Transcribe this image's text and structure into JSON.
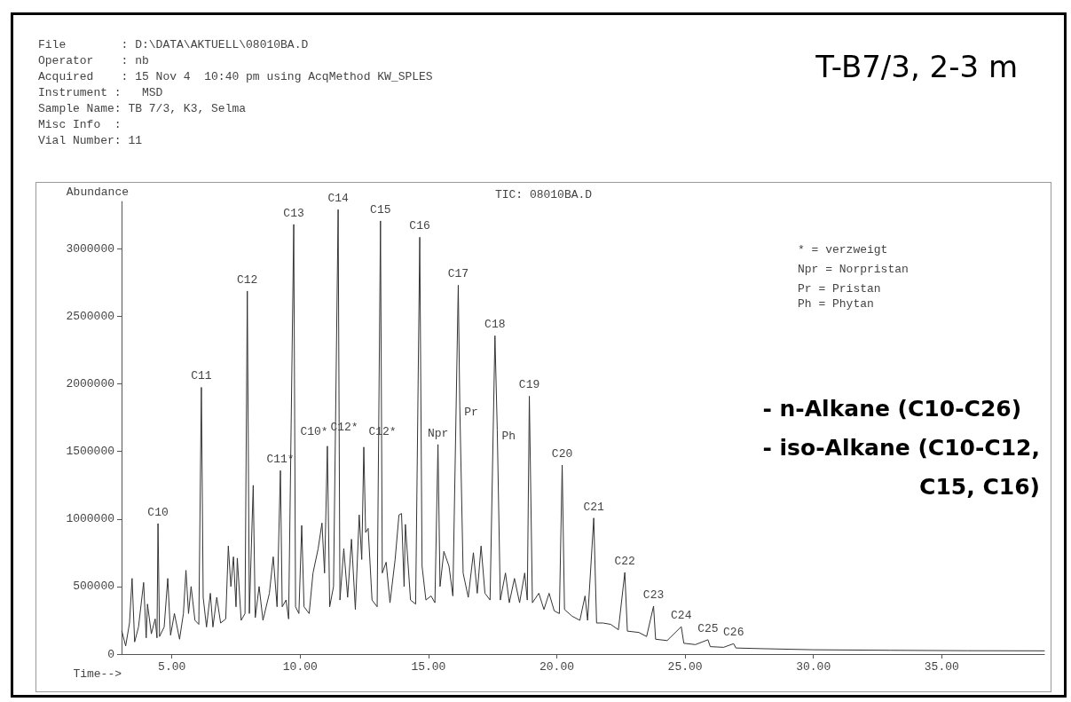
{
  "chart_data": {
    "type": "line",
    "title": "T-B7/3, 2-3 m",
    "subtitle": "TIC: 08010BA.D",
    "xlabel": "Time-->",
    "ylabel": "Abundance",
    "xlim": [
      3.04,
      39
    ],
    "xticks": [
      {
        "value": 5,
        "label": "5.00"
      },
      {
        "value": 10,
        "label": "10.00"
      },
      {
        "value": 15,
        "label": "15.00"
      },
      {
        "value": 20,
        "label": "20.00"
      },
      {
        "value": 25,
        "label": "25.00"
      },
      {
        "value": 30,
        "label": "30.00"
      },
      {
        "value": 35,
        "label": "35.00"
      }
    ],
    "ylim": [
      0,
      3350000
    ],
    "yticks": [
      0,
      500000,
      1000000,
      1500000,
      2000000,
      2500000,
      3000000
    ],
    "grid": false,
    "marker": "none",
    "line_style": "solid",
    "series": [
      {
        "color": "#333333",
        "x": [
          3.05,
          3.2,
          3.35,
          3.45,
          3.55,
          3.7,
          3.9,
          4.0,
          4.05,
          4.2,
          4.35,
          4.42,
          4.46,
          4.52,
          4.7,
          4.84,
          4.95,
          5.1,
          5.3,
          5.45,
          5.55,
          5.65,
          5.75,
          5.9,
          6.05,
          6.15,
          6.22,
          6.35,
          6.5,
          6.6,
          6.75,
          6.9,
          7.1,
          7.2,
          7.3,
          7.4,
          7.5,
          7.55,
          7.7,
          7.85,
          7.94,
          8.02,
          8.17,
          8.25,
          8.4,
          8.55,
          8.8,
          8.95,
          9.1,
          9.17,
          9.23,
          9.3,
          9.45,
          9.55,
          9.75,
          9.82,
          9.95,
          10.06,
          10.15,
          10.35,
          10.5,
          10.7,
          10.85,
          10.95,
          11.06,
          11.15,
          11.3,
          11.48,
          11.55,
          11.7,
          11.85,
          12.0,
          12.15,
          12.3,
          12.4,
          12.48,
          12.55,
          12.65,
          12.8,
          13.0,
          13.13,
          13.2,
          13.35,
          13.5,
          13.7,
          13.85,
          13.95,
          14.05,
          14.1,
          14.3,
          14.5,
          14.66,
          14.75,
          14.9,
          15.1,
          15.25,
          15.37,
          15.45,
          15.6,
          15.8,
          15.95,
          16.16,
          16.22,
          16.35,
          16.55,
          16.75,
          16.9,
          17.05,
          17.2,
          17.4,
          17.59,
          17.68,
          17.8,
          18.0,
          18.15,
          18.35,
          18.55,
          18.75,
          18.85,
          18.93,
          19.05,
          19.3,
          19.5,
          19.7,
          19.9,
          20.1,
          20.21,
          20.3,
          20.6,
          20.9,
          21.1,
          21.2,
          21.44,
          21.55,
          21.8,
          22.1,
          22.4,
          22.65,
          22.75,
          23.2,
          23.5,
          23.77,
          23.85,
          24.3,
          24.85,
          24.95,
          25.4,
          25.89,
          25.98,
          26.5,
          26.89,
          26.98,
          28,
          30,
          33,
          36,
          39
        ],
        "values": [
          170000,
          60000,
          230000,
          560000,
          90000,
          200000,
          530000,
          120000,
          370000,
          150000,
          260000,
          120000,
          966000,
          130000,
          200000,
          560000,
          140000,
          300000,
          110000,
          300000,
          620000,
          300000,
          500000,
          250000,
          220000,
          1974000,
          420000,
          200000,
          450000,
          200000,
          420000,
          230000,
          260000,
          800000,
          500000,
          720000,
          350000,
          710000,
          250000,
          300000,
          2687000,
          300000,
          1249000,
          270000,
          500000,
          250000,
          450000,
          720000,
          350000,
          900000,
          1358000,
          350000,
          400000,
          260000,
          3180000,
          350000,
          300000,
          952000,
          350000,
          300000,
          600000,
          780000,
          970000,
          600000,
          1539000,
          350000,
          500000,
          3290000,
          400000,
          780000,
          420000,
          850000,
          330000,
          1030000,
          700000,
          1532000,
          900000,
          930000,
          400000,
          350000,
          3206000,
          600000,
          680000,
          380000,
          700000,
          1030000,
          1040000,
          500000,
          960000,
          400000,
          370000,
          3085000,
          650000,
          400000,
          430000,
          380000,
          1551000,
          500000,
          760000,
          650000,
          430000,
          2730000,
          1840000,
          600000,
          420000,
          750000,
          450000,
          800000,
          450000,
          400000,
          2356000,
          1660000,
          400000,
          600000,
          380000,
          560000,
          380000,
          600000,
          400000,
          1909000,
          380000,
          450000,
          330000,
          450000,
          320000,
          300000,
          1399000,
          330000,
          280000,
          250000,
          430000,
          250000,
          1007000,
          230000,
          230000,
          220000,
          180000,
          604000,
          170000,
          160000,
          130000,
          355000,
          110000,
          100000,
          203000,
          80000,
          70000,
          106000,
          55000,
          50000,
          77000,
          45000,
          40000,
          32000,
          28000,
          25000,
          24000
        ]
      }
    ],
    "annotations": [
      "File        : D:\\DATA\\AKTUELL\\08010BA.D",
      "Operator    : nb",
      "Acquired    : 15 Nov 4  10:40 pm using AcqMethod KW_SPLES",
      "Instrument :   MSD",
      "Sample Name: TB 7/3, K3, Selma",
      "Misc Info  :",
      "Vial Number: 11",
      "* = verzweigt",
      "Npr = Norpristan",
      "Pr = Pristan",
      "Ph = Phytan",
      "- n-Alkane (C10-C26)",
      "- iso-Alkane (C10-C12,",
      "C15, C16)",
      "C10*",
      "C12*",
      "C12*",
      {
        "text": "C10",
        "x": 4.46,
        "y": 966000
      },
      {
        "text": "C11",
        "x": 6.15,
        "y": 1974000
      },
      {
        "text": "C12",
        "x": 7.94,
        "y": 2687000
      },
      {
        "text": "C11*",
        "x": 9.23,
        "y": 1358000
      },
      {
        "text": "C13",
        "x": 9.75,
        "y": 3180000
      },
      {
        "text": "C14",
        "x": 11.48,
        "y": 3290000
      },
      {
        "text": "C15",
        "x": 13.13,
        "y": 3206000
      },
      {
        "text": "C16",
        "x": 14.66,
        "y": 3085000
      },
      {
        "text": "Npr",
        "x": 15.37,
        "y": 1551000
      },
      {
        "text": "C17",
        "x": 16.16,
        "y": 2730000
      },
      {
        "text": "Pr",
        "x": 16.22,
        "y": 1840000
      },
      {
        "text": "C18",
        "x": 17.59,
        "y": 2356000
      },
      {
        "text": "Ph",
        "x": 17.68,
        "y": 1660000
      },
      {
        "text": "C19",
        "x": 18.93,
        "y": 1909000
      },
      {
        "text": "C20",
        "x": 20.21,
        "y": 1399000
      },
      {
        "text": "C21",
        "x": 21.44,
        "y": 1007000
      },
      {
        "text": "C22",
        "x": 22.65,
        "y": 604000
      },
      {
        "text": "C23",
        "x": 23.77,
        "y": 355000
      },
      {
        "text": "C24",
        "x": 24.85,
        "y": 203000
      },
      {
        "text": "C25",
        "x": 25.89,
        "y": 106000
      },
      {
        "text": "C26",
        "x": 26.89,
        "y": 77000
      }
    ]
  }
}
